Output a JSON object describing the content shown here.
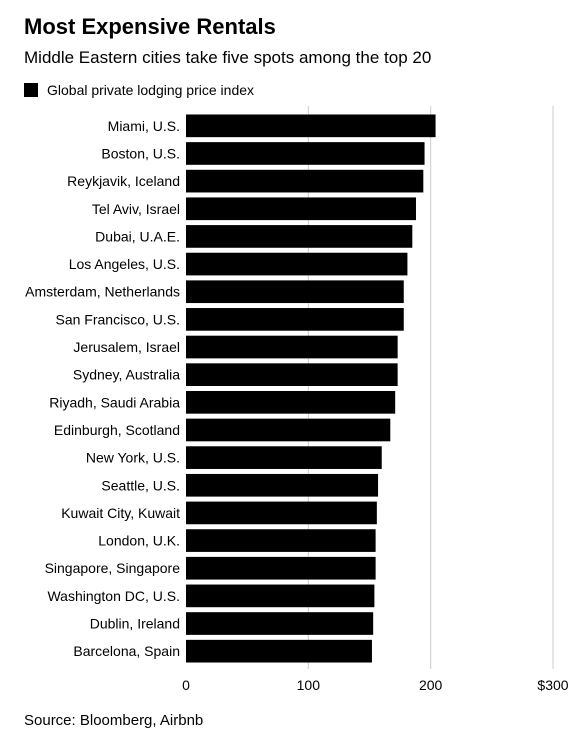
{
  "title": "Most Expensive Rentals",
  "subtitle": "Middle Eastern cities take five spots among the top 20",
  "source": "Source: Bloomberg, Airbnb",
  "colors": {
    "bar": "#000000",
    "grid": "#cccccc"
  },
  "chart_data": {
    "type": "bar",
    "orientation": "horizontal",
    "legend": {
      "label": "Global private lodging price index",
      "placement": "top-left"
    },
    "categories": [
      "Miami, U.S.",
      "Boston, U.S.",
      "Reykjavik, Iceland",
      "Tel Aviv, Israel",
      "Dubai, U.A.E.",
      "Los Angeles, U.S.",
      "Amsterdam, Netherlands",
      "San Francisco, U.S.",
      "Jerusalem, Israel",
      "Sydney, Australia",
      "Riyadh, Saudi Arabia",
      "Edinburgh, Scotland",
      "New York, U.S.",
      "Seattle, U.S.",
      "Kuwait City, Kuwait",
      "London, U.K.",
      "Singapore, Singapore",
      "Washington DC, U.S.",
      "Dublin, Ireland",
      "Barcelona, Spain"
    ],
    "values": [
      204,
      195,
      194,
      188,
      185,
      181,
      178,
      178,
      173,
      173,
      171,
      167,
      160,
      157,
      156,
      155,
      155,
      154,
      153,
      152
    ],
    "xlim": [
      0,
      300
    ],
    "xticks": [
      0,
      100,
      200,
      300
    ],
    "xtick_labels": [
      "0",
      "100",
      "200",
      "$300"
    ],
    "grid": true
  }
}
